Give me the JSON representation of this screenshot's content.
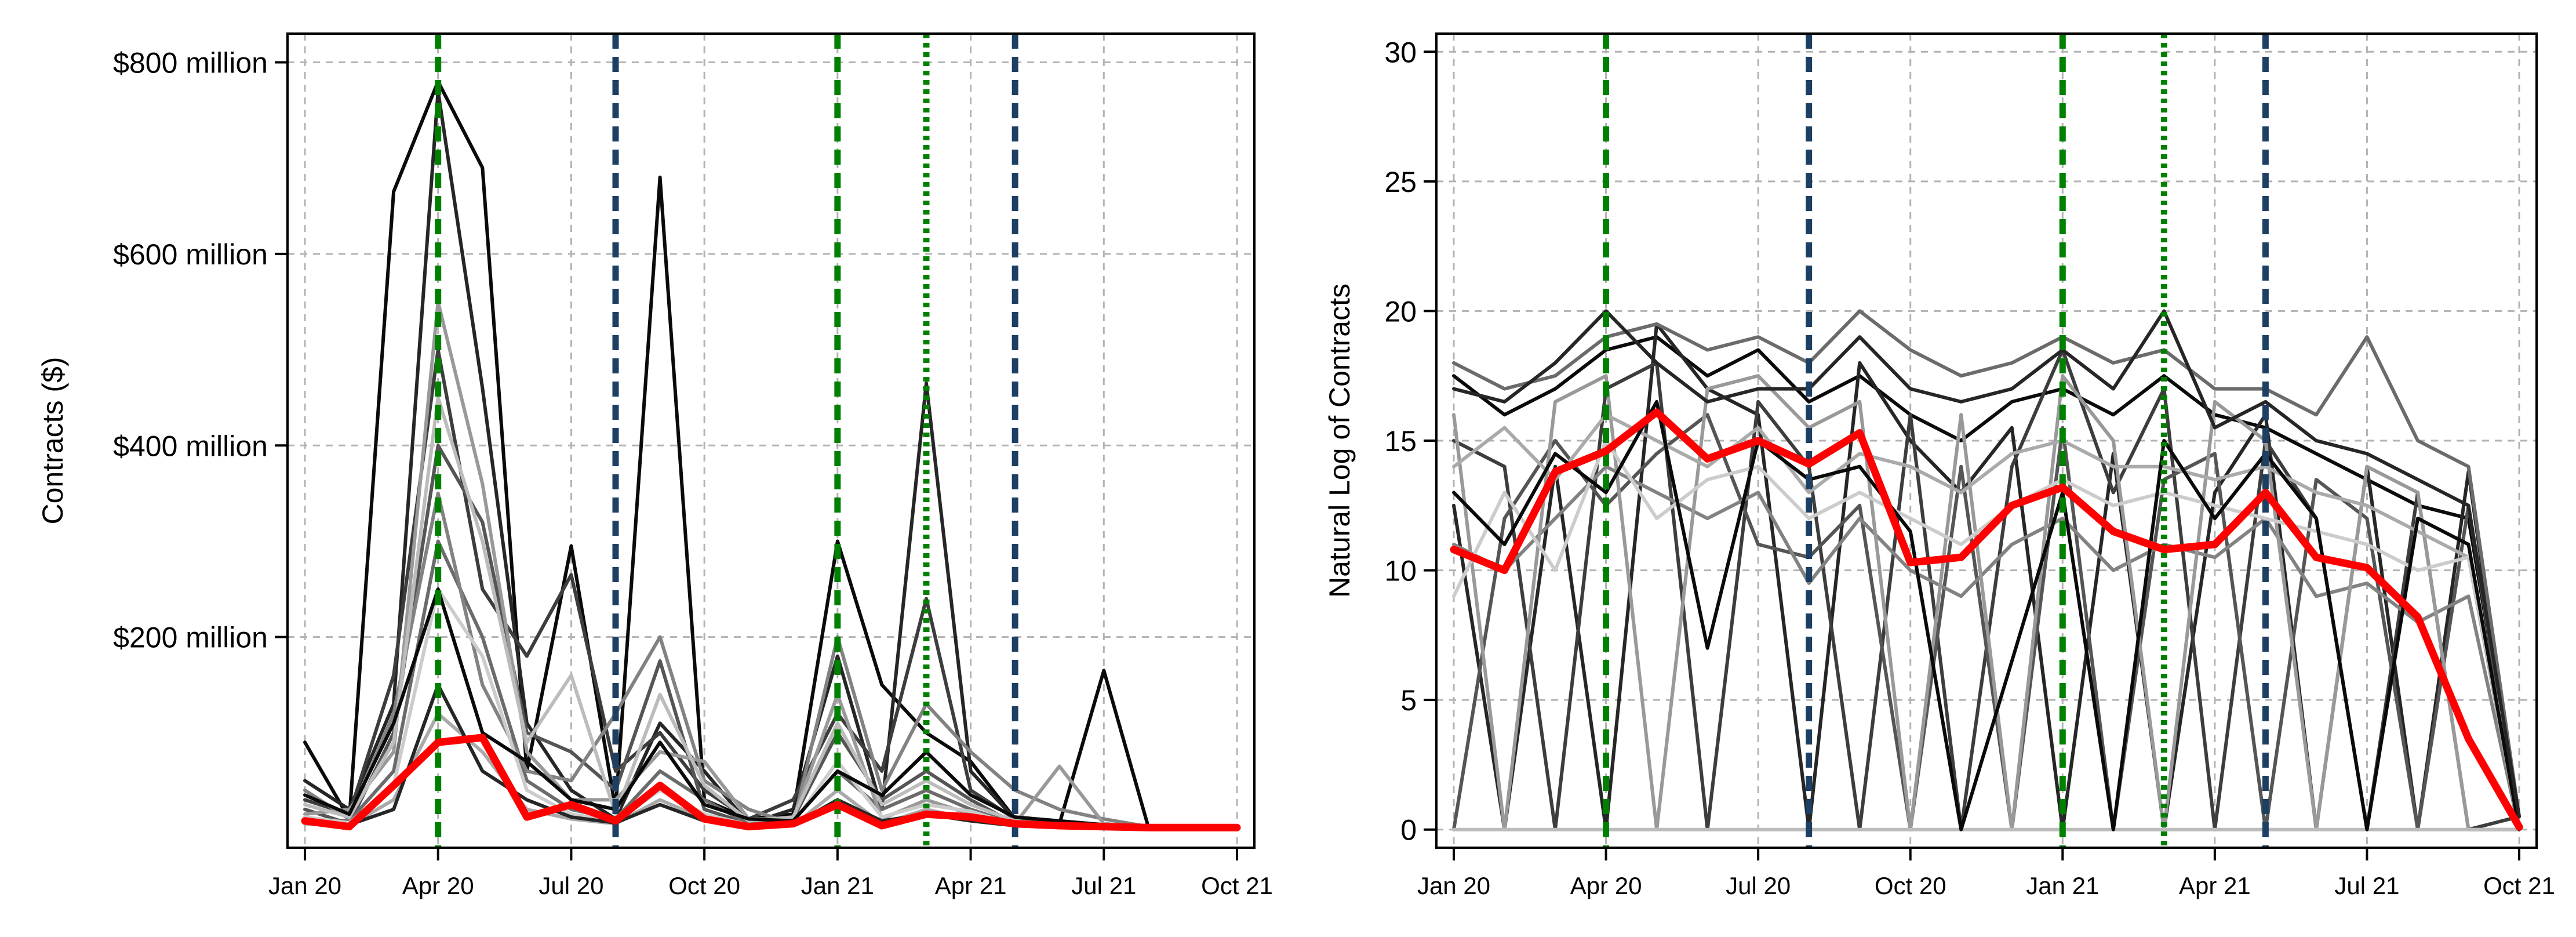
{
  "colors": {
    "grid": "#b3b3b3",
    "frame": "#000000",
    "highlight": "#ff0000",
    "event_green": "#008000",
    "event_blue": "#1c3f63",
    "gray_ramp": [
      "#0a0a0a",
      "#262626",
      "#3d3d3d",
      "#555555",
      "#6b6b6b",
      "#828282",
      "#999999",
      "#aaaaaa",
      "#bcbcbc",
      "#cccccc"
    ]
  },
  "chart_data": [
    {
      "type": "line",
      "title": "",
      "ylabel": "Contracts ($)",
      "xlabel": "",
      "grid": true,
      "legend": "none",
      "x": [
        "2020-01",
        "2020-02",
        "2020-03",
        "2020-04",
        "2020-05",
        "2020-06",
        "2020-07",
        "2020-08",
        "2020-09",
        "2020-10",
        "2020-11",
        "2020-12",
        "2021-01",
        "2021-02",
        "2021-03",
        "2021-04",
        "2021-05",
        "2021-06",
        "2021-07",
        "2021-08",
        "2021-09",
        "2021-10"
      ],
      "xlim": [
        "2020-01",
        "2021-10"
      ],
      "x_ticks": [
        "2020-01",
        "2020-04",
        "2020-07",
        "2020-10",
        "2021-01",
        "2021-04",
        "2021-07",
        "2021-10"
      ],
      "x_tick_labels": [
        "Jan 20",
        "Apr 20",
        "Jul 20",
        "Oct 20",
        "Jan 21",
        "Apr 21",
        "Jul 21",
        "Oct 21"
      ],
      "ylim": [
        -20,
        830
      ],
      "y_ticks": [
        200,
        400,
        600,
        800
      ],
      "y_tick_labels": [
        "$200 million",
        "$400 million",
        "$600 million",
        "$800 million"
      ],
      "unit": "million $",
      "vlines": [
        {
          "x": "2020-04",
          "style": "dashed",
          "color": "green"
        },
        {
          "x": "2020-08",
          "style": "dashed",
          "color": "blue"
        },
        {
          "x": "2021-01",
          "style": "dashed",
          "color": "green"
        },
        {
          "x": "2021-03",
          "style": "dotted",
          "color": "green"
        },
        {
          "x": "2021-05",
          "style": "dashed",
          "color": "blue"
        }
      ],
      "highlight_series": {
        "values": [
          8,
          2,
          45,
          90,
          95,
          12,
          25,
          8,
          45,
          10,
          2,
          5,
          25,
          3,
          15,
          12,
          5,
          3,
          2,
          1,
          1,
          1
        ]
      },
      "series": [
        {
          "values": [
            90,
            10,
            665,
            780,
            690,
            60,
            295,
            20,
            680,
            30,
            10,
            15,
            300,
            150,
            100,
            70,
            10,
            5,
            165,
            2,
            1,
            1
          ]
        },
        {
          "values": [
            50,
            20,
            130,
            770,
            460,
            110,
            40,
            10,
            110,
            60,
            5,
            20,
            180,
            20,
            465,
            60,
            10,
            5,
            3,
            2,
            1,
            1
          ]
        },
        {
          "values": [
            30,
            15,
            160,
            500,
            250,
            180,
            265,
            60,
            100,
            40,
            10,
            30,
            120,
            60,
            240,
            40,
            10,
            5,
            3,
            2,
            1,
            1
          ]
        },
        {
          "values": [
            20,
            5,
            100,
            400,
            320,
            100,
            80,
            40,
            175,
            20,
            5,
            10,
            100,
            30,
            60,
            30,
            5,
            3,
            2,
            1,
            1,
            1
          ]
        },
        {
          "values": [
            10,
            8,
            60,
            300,
            200,
            50,
            20,
            10,
            60,
            30,
            5,
            8,
            60,
            20,
            40,
            20,
            5,
            2,
            2,
            1,
            1,
            1
          ]
        },
        {
          "values": [
            40,
            10,
            120,
            350,
            150,
            60,
            50,
            120,
            200,
            50,
            20,
            5,
            200,
            40,
            130,
            80,
            40,
            20,
            10,
            2,
            1,
            1
          ]
        },
        {
          "values": [
            15,
            20,
            80,
            550,
            360,
            80,
            30,
            30,
            80,
            70,
            10,
            10,
            140,
            10,
            30,
            15,
            5,
            65,
            5,
            2,
            1,
            1
          ]
        },
        {
          "values": [
            5,
            3,
            30,
            120,
            80,
            20,
            10,
            5,
            30,
            10,
            2,
            3,
            40,
            5,
            20,
            10,
            3,
            2,
            1,
            1,
            1,
            1
          ]
        },
        {
          "values": [
            25,
            12,
            90,
            450,
            300,
            90,
            160,
            15,
            140,
            45,
            8,
            12,
            110,
            25,
            50,
            25,
            8,
            4,
            3,
            2,
            1,
            1
          ]
        },
        {
          "values": [
            12,
            6,
            45,
            250,
            180,
            40,
            15,
            8,
            40,
            15,
            4,
            6,
            70,
            12,
            25,
            18,
            4,
            2,
            2,
            1,
            1,
            1
          ]
        },
        {
          "values": [
            35,
            15,
            110,
            250,
            100,
            70,
            30,
            20,
            90,
            25,
            10,
            8,
            60,
            35,
            80,
            35,
            12,
            8,
            4,
            2,
            1,
            1
          ]
        },
        {
          "values": [
            8,
            4,
            20,
            150,
            60,
            30,
            12,
            6,
            25,
            8,
            3,
            4,
            30,
            8,
            15,
            8,
            3,
            2,
            1,
            1,
            1,
            1
          ]
        }
      ]
    },
    {
      "type": "line",
      "title": "",
      "ylabel": "Natural Log of Contracts",
      "xlabel": "",
      "grid": true,
      "legend": "none",
      "x": [
        "2020-01",
        "2020-02",
        "2020-03",
        "2020-04",
        "2020-05",
        "2020-06",
        "2020-07",
        "2020-08",
        "2020-09",
        "2020-10",
        "2020-11",
        "2020-12",
        "2021-01",
        "2021-02",
        "2021-03",
        "2021-04",
        "2021-05",
        "2021-06",
        "2021-07",
        "2021-08",
        "2021-09",
        "2021-10"
      ],
      "xlim": [
        "2020-01",
        "2021-10"
      ],
      "x_ticks": [
        "2020-01",
        "2020-04",
        "2020-07",
        "2020-10",
        "2021-01",
        "2021-04",
        "2021-07",
        "2021-10"
      ],
      "x_tick_labels": [
        "Jan 20",
        "Apr 20",
        "Jul 20",
        "Oct 20",
        "Jan 21",
        "Apr 21",
        "Jul 21",
        "Oct 21"
      ],
      "ylim": [
        -0.7,
        30.7
      ],
      "y_ticks": [
        0,
        5,
        10,
        15,
        20,
        25,
        30
      ],
      "y_tick_labels": [
        "0",
        "5",
        "10",
        "15",
        "20",
        "25",
        "30"
      ],
      "vlines": [
        {
          "x": "2020-04",
          "style": "dashed",
          "color": "green"
        },
        {
          "x": "2020-08",
          "style": "dashed",
          "color": "blue"
        },
        {
          "x": "2021-01",
          "style": "dashed",
          "color": "green"
        },
        {
          "x": "2021-03",
          "style": "dotted",
          "color": "green"
        },
        {
          "x": "2021-05",
          "style": "dashed",
          "color": "blue"
        }
      ],
      "highlight_series": {
        "values": [
          10.8,
          10.0,
          13.8,
          14.6,
          16.1,
          14.3,
          15.0,
          14.1,
          15.3,
          10.3,
          10.5,
          12.5,
          13.2,
          11.5,
          10.8,
          11.0,
          13.0,
          10.5,
          10.1,
          8.2,
          3.5,
          0.1
        ]
      },
      "series": [
        {
          "values": [
            17.5,
            16.0,
            17.0,
            18.5,
            19.0,
            17.5,
            18.5,
            16.5,
            17.5,
            16.0,
            15.0,
            16.5,
            17.0,
            16.0,
            17.5,
            16.0,
            15.5,
            14.5,
            13.5,
            12.5,
            12.0,
            0.5
          ]
        },
        {
          "values": [
            12.5,
            0.0,
            14.0,
            0.0,
            19.5,
            17.0,
            16.0,
            0.0,
            18.0,
            15.0,
            13.0,
            15.5,
            0.0,
            14.5,
            0.0,
            13.0,
            16.0,
            0.0,
            14.0,
            0.0,
            13.8,
            0.0
          ]
        },
        {
          "values": [
            15.0,
            14.0,
            0.0,
            17.0,
            18.0,
            0.0,
            16.5,
            14.0,
            0.0,
            16.0,
            0.0,
            14.0,
            18.5,
            13.0,
            17.0,
            0.0,
            15.0,
            12.0,
            0.0,
            13.0,
            0.0,
            0.5
          ]
        },
        {
          "values": [
            0.0,
            12.0,
            15.0,
            12.5,
            14.5,
            16.0,
            11.0,
            10.5,
            12.5,
            0.0,
            14.0,
            0.0,
            15.5,
            0.0,
            13.5,
            14.5,
            0.0,
            13.5,
            12.0,
            0.0,
            12.5,
            0.0
          ]
        },
        {
          "values": [
            18.0,
            17.0,
            17.5,
            19.0,
            19.5,
            18.5,
            19.0,
            18.0,
            20.0,
            18.5,
            17.5,
            18.0,
            19.0,
            18.0,
            18.5,
            17.0,
            17.0,
            16.0,
            19.0,
            15.0,
            14.0,
            0.5
          ]
        },
        {
          "values": [
            11.0,
            10.0,
            12.0,
            14.0,
            13.0,
            12.0,
            13.0,
            9.5,
            12.0,
            10.0,
            9.0,
            11.0,
            12.0,
            10.0,
            11.0,
            10.5,
            12.0,
            9.0,
            9.5,
            8.0,
            9.0,
            0.0
          ]
        },
        {
          "values": [
            16.0,
            0.0,
            16.5,
            17.5,
            0.0,
            17.0,
            17.5,
            15.5,
            16.5,
            0.0,
            16.0,
            0.0,
            17.5,
            15.0,
            0.0,
            16.5,
            15.0,
            0.0,
            14.0,
            13.0,
            0.0,
            0.0
          ]
        },
        {
          "values": [
            14.0,
            15.5,
            13.5,
            16.0,
            15.0,
            14.0,
            15.5,
            13.0,
            14.5,
            14.0,
            13.0,
            14.5,
            15.0,
            14.0,
            14.0,
            13.5,
            14.0,
            13.0,
            12.5,
            11.5,
            10.5,
            0.0
          ]
        },
        {
          "values": [
            0.0,
            0.0,
            0.0,
            0.0,
            0.0,
            0.0,
            0.0,
            0.0,
            0.0,
            0.0,
            0.0,
            0.0,
            0.0,
            0.0,
            0.0,
            0.0,
            0.0,
            0.0,
            0.0,
            0.0,
            0.0,
            0.0
          ]
        },
        {
          "values": [
            9.0,
            13.0,
            10.0,
            15.0,
            12.0,
            13.5,
            14.0,
            12.0,
            13.0,
            12.0,
            11.0,
            12.5,
            13.5,
            12.5,
            13.0,
            12.5,
            12.0,
            11.5,
            11.0,
            10.0,
            10.5,
            0.5
          ]
        },
        {
          "values": [
            13.0,
            11.0,
            14.5,
            13.0,
            16.5,
            7.0,
            15.0,
            13.5,
            14.0,
            11.5,
            0.0,
            6.5,
            13.0,
            0.0,
            15.0,
            12.0,
            14.5,
            12.0,
            0.0,
            12.0,
            11.0,
            0.0
          ]
        },
        {
          "values": [
            17.0,
            16.5,
            18.0,
            20.0,
            18.0,
            16.5,
            17.0,
            17.0,
            19.0,
            17.0,
            16.5,
            17.0,
            18.5,
            17.0,
            20.0,
            15.5,
            16.5,
            15.0,
            14.5,
            13.5,
            12.5,
            0.5
          ]
        }
      ]
    }
  ]
}
